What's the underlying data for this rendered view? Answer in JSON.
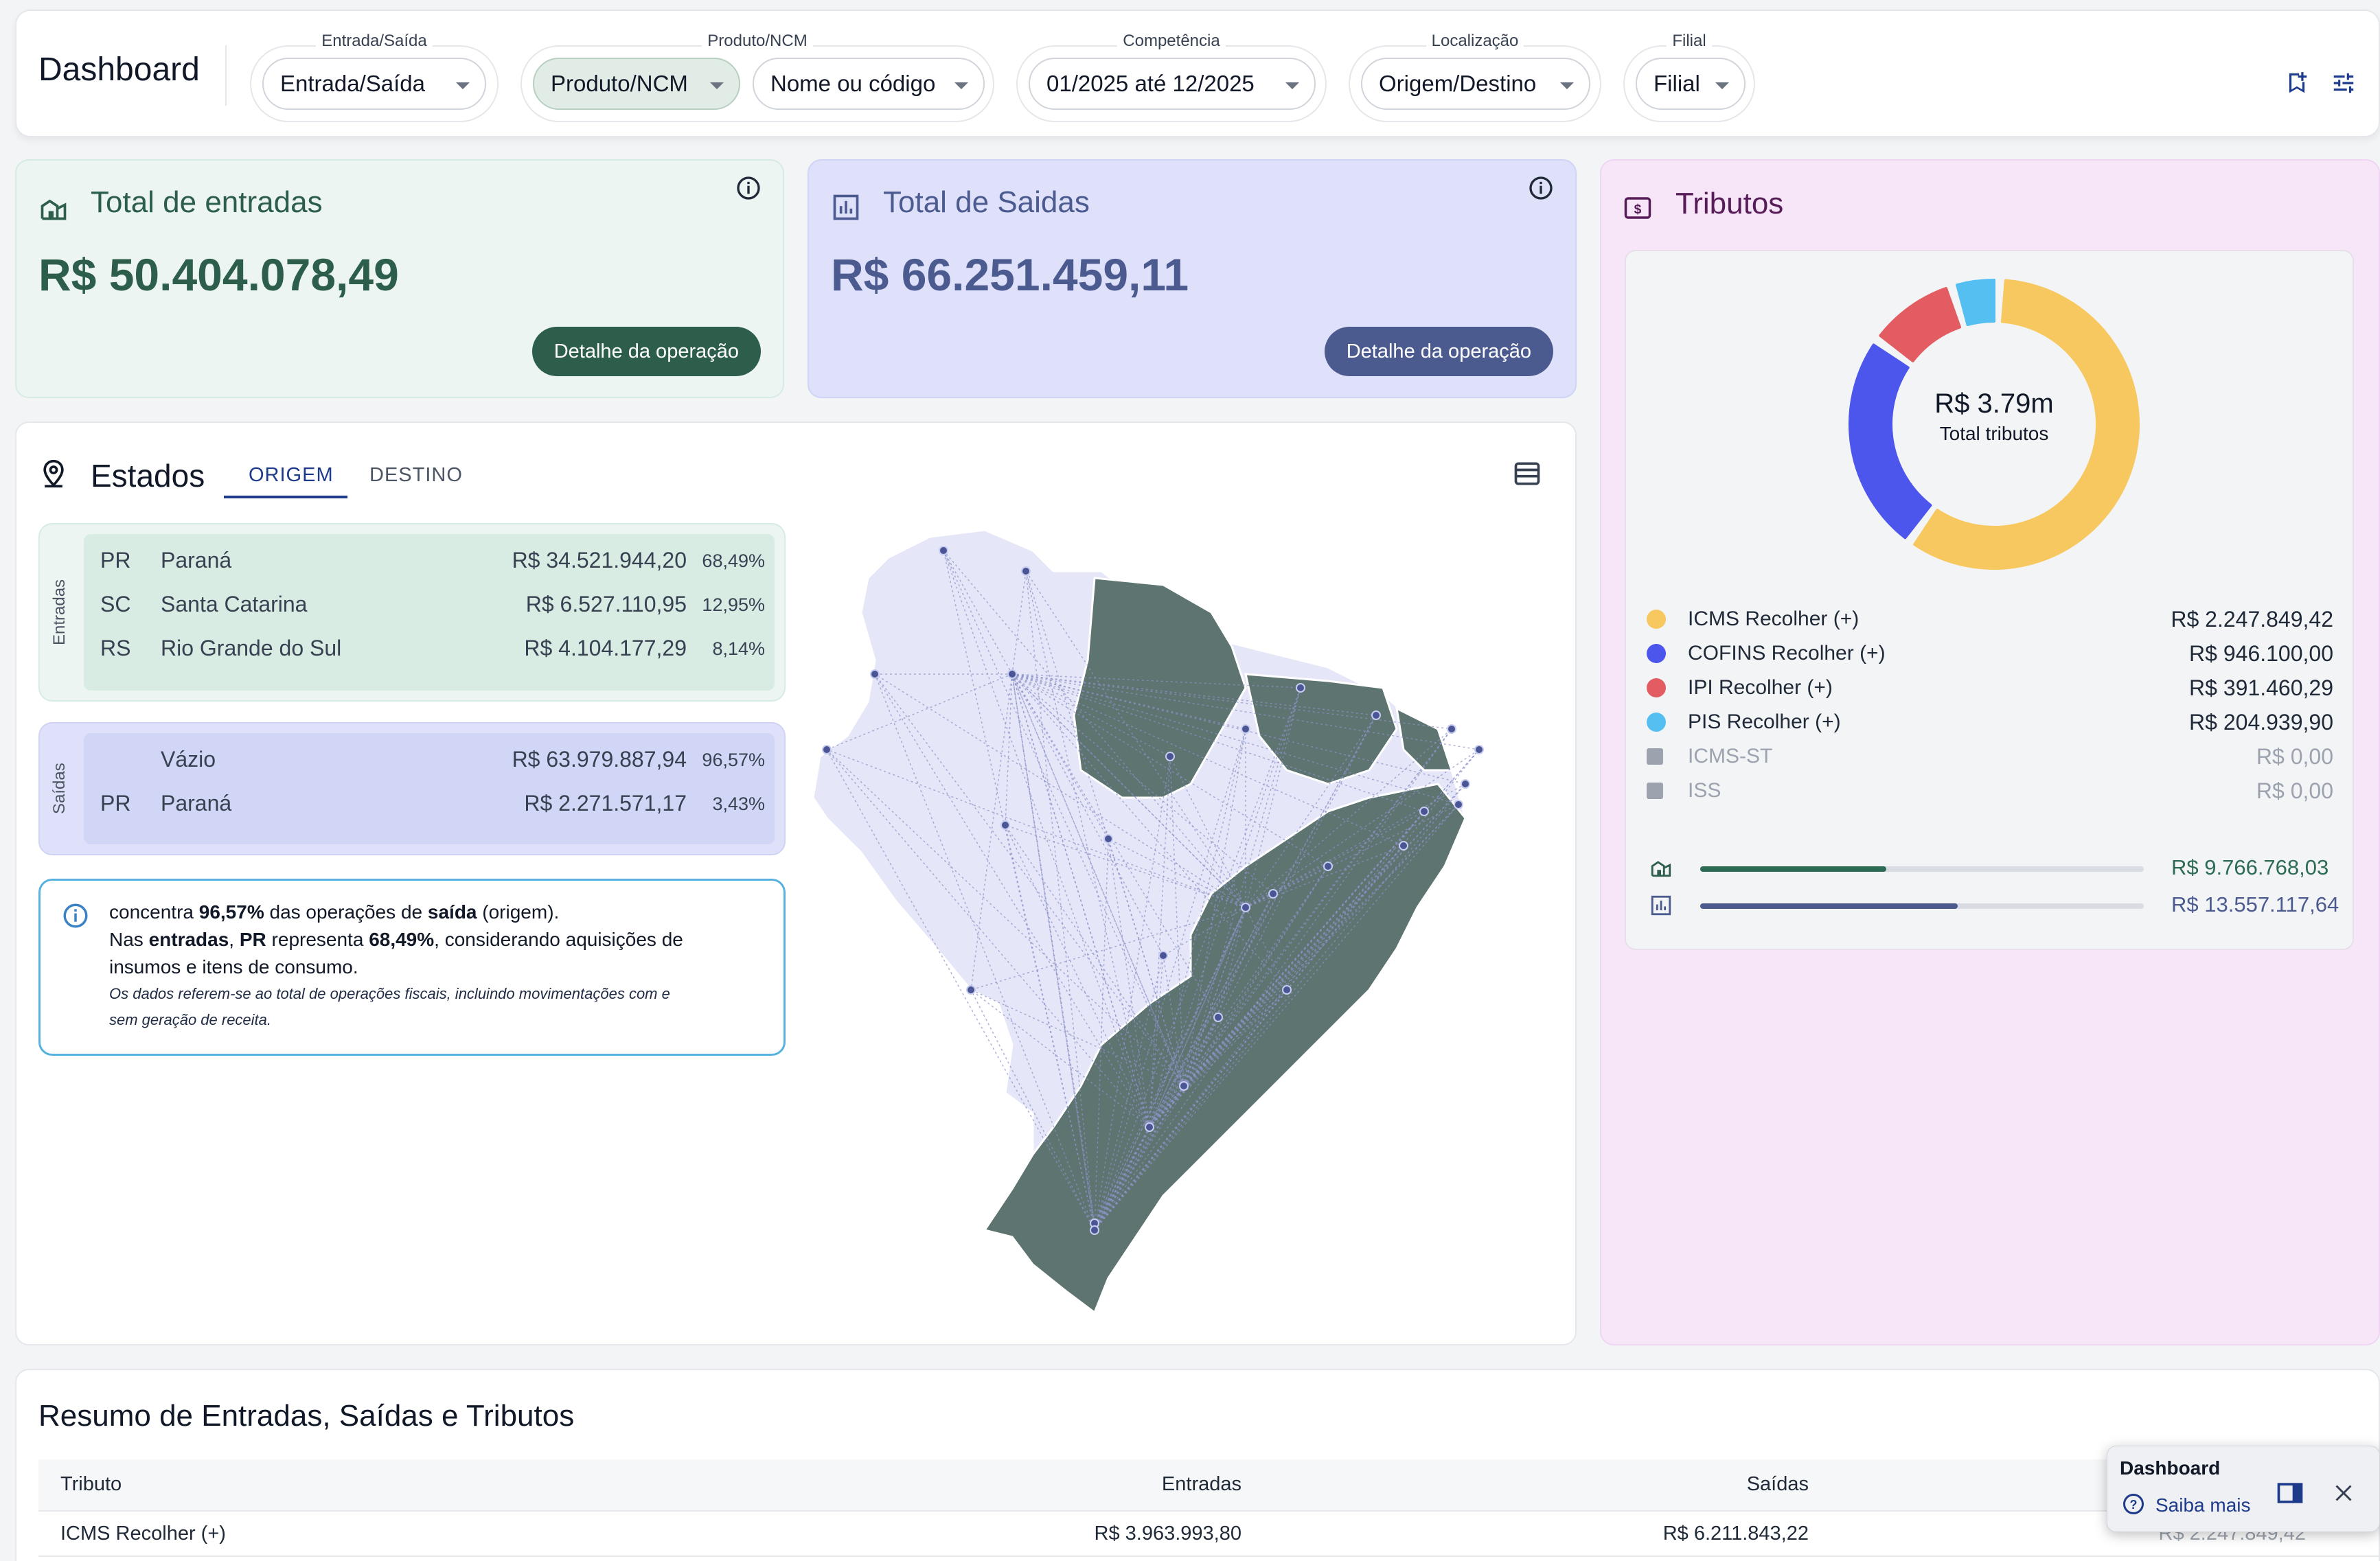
{
  "header": {
    "title": "Dashboard",
    "filters": [
      {
        "label": "Entrada/Saída",
        "value": "Entrada/Saída"
      },
      {
        "label": "Produto/NCM",
        "value": "Produto/NCM",
        "second_value": "Nome ou código"
      },
      {
        "label": "Competência",
        "value": "01/2025 até 12/2025"
      },
      {
        "label": "Localização",
        "value": "Origem/Destino"
      },
      {
        "label": "Filial",
        "value": "Filial"
      }
    ],
    "icons": [
      "bookmark-add-icon",
      "tune-icon"
    ]
  },
  "entradas": {
    "title": "Total de entradas",
    "value": "R$ 50.404.078,49",
    "button": "Detalhe da operação",
    "color": "#2d5e4c"
  },
  "saidas": {
    "title": "Total de Saidas",
    "value": "R$ 66.251.459,11",
    "button": "Detalhe da operação",
    "color": "#4c5b8f"
  },
  "tributos": {
    "title": "Tributos",
    "donut_total": "R$ 3.79m",
    "donut_label": "Total tributos",
    "items": [
      {
        "name": "ICMS Recolher (+)",
        "value": "R$ 2.247.849,42",
        "color": "#f7c85f"
      },
      {
        "name": "COFINS Recolher (+)",
        "value": "R$ 946.100,00",
        "color": "#4c56ec"
      },
      {
        "name": "IPI Recolher (+)",
        "value": "R$ 391.460,29",
        "color": "#e25c62"
      },
      {
        "name": "PIS Recolher (+)",
        "value": "R$ 204.939,90",
        "color": "#56bff2"
      },
      {
        "name": "ICMS-ST",
        "value": "R$ 0,00",
        "color": "#9ca3af"
      },
      {
        "name": "ISS",
        "value": "R$ 0,00",
        "color": "#9ca3af"
      }
    ],
    "bars": [
      {
        "value": "R$ 9.766.768,03",
        "fraction": 0.42,
        "color": "#2d6b55"
      },
      {
        "value": "R$ 13.557.117,64",
        "fraction": 0.58,
        "color": "#4c5b8f"
      }
    ]
  },
  "chart_data": {
    "type": "pie",
    "title": "",
    "categories": [
      "ICMS Recolher (+)",
      "COFINS Recolher (+)",
      "IPI Recolher (+)",
      "PIS Recolher (+)",
      "ICMS-ST",
      "ISS"
    ],
    "values": [
      2247849.42,
      946100.0,
      391460.29,
      204939.9,
      0,
      0
    ],
    "colors": [
      "#f7c85f",
      "#4c56ec",
      "#e25c62",
      "#56bff2",
      "#9ca3af",
      "#9ca3af"
    ]
  },
  "estados": {
    "title": "Estados",
    "tabs": [
      "ORIGEM",
      "DESTINO"
    ],
    "entradas_label": "Entradas",
    "saidas_label": "Saídas",
    "entradas": [
      {
        "uf": "PR",
        "name": "Paraná",
        "value": "R$ 34.521.944,20",
        "pct": "68,49%"
      },
      {
        "uf": "SC",
        "name": "Santa Catarina",
        "value": "R$ 6.527.110,95",
        "pct": "12,95%"
      },
      {
        "uf": "RS",
        "name": "Rio Grande do Sul",
        "value": "R$ 4.104.177,29",
        "pct": "8,14%"
      }
    ],
    "saidas": [
      {
        "uf": "",
        "name": "Vázio",
        "value": "R$ 63.979.887,94",
        "pct": "96,57%"
      },
      {
        "uf": "PR",
        "name": "Paraná",
        "value": "R$ 2.271.571,17",
        "pct": "3,43%"
      }
    ],
    "info": {
      "l1_a": "concentra ",
      "l1_b": "96,57%",
      "l1_c": " das operações de ",
      "l1_d": "saída",
      "l1_e": " (origem).",
      "l2_a": "Nas ",
      "l2_b": "entradas",
      "l2_c": ", ",
      "l2_d": "PR",
      "l2_e": " representa ",
      "l2_f": "68,49%",
      "l2_g": ", considerando aquisições de",
      "l3": "insumos e itens de consumo.",
      "l4": "Os dados referem-se ao total de operações fiscais, incluindo movimentações com e",
      "l5": "sem geração de receita."
    }
  },
  "resumo": {
    "title": "Resumo de Entradas, Saídas e Tributos",
    "columns": [
      "Tributo",
      "Entradas",
      "Saídas"
    ],
    "row": {
      "tributo": "ICMS Recolher (+)",
      "entradas": "R$ 3.963.993,80",
      "saidas": "R$ 6.211.843,22",
      "extra": "R$ 2.247.849,42"
    }
  },
  "help": {
    "title": "Dashboard",
    "link": "Saiba mais"
  }
}
